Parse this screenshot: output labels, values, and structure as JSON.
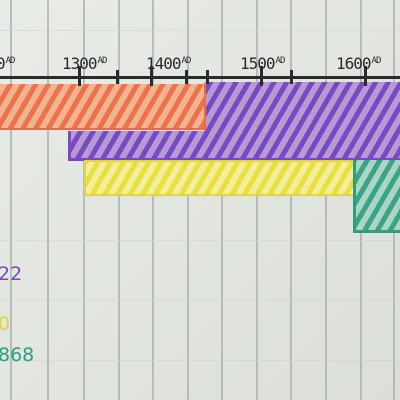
{
  "timeline": {
    "year_labels": [
      {
        "num": "0",
        "suffix": "AD"
      },
      {
        "num": "1300",
        "suffix": "AD"
      },
      {
        "num": "1400",
        "suffix": "AD"
      },
      {
        "num": "1500",
        "suffix": "AD"
      },
      {
        "num": "1600",
        "suffix": "AD"
      }
    ]
  },
  "bands": [
    {
      "color_name": "orange",
      "fill": "#f2b391",
      "stroke": "#e86b45"
    },
    {
      "color_name": "purple",
      "fill": "#b69ad6",
      "stroke": "#7a47c4"
    },
    {
      "color_name": "yellow",
      "fill": "#f3ee9a",
      "stroke": "#e2d63c"
    },
    {
      "color_name": "teal",
      "fill": "#a9d6c6",
      "stroke": "#2f9d7e"
    }
  ],
  "side_labels": [
    {
      "text": "22",
      "color": "#7a47c4"
    },
    {
      "text": "0",
      "color": "#e2d63c"
    },
    {
      "text": "868",
      "color": "#2f9d7e"
    }
  ]
}
